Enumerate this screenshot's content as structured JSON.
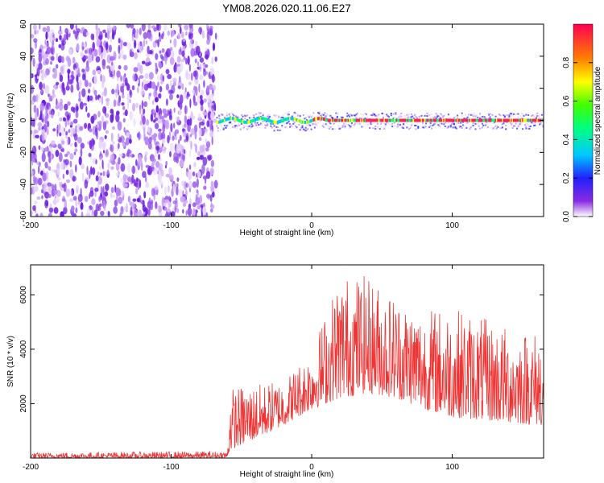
{
  "title": "YM08.2026.020.11.06.E27",
  "chart_data": [
    {
      "type": "heatmap",
      "title": "YM08.2026.020.11.06.E27",
      "xlabel": "Height of straight line (km)",
      "ylabel": "Frequency (Hz)",
      "xlim": [
        -200,
        165
      ],
      "ylim": [
        -60,
        60
      ],
      "x_ticks": [
        "-200",
        "-100",
        "0",
        "100"
      ],
      "y_ticks": [
        "60",
        "40",
        "20",
        "0",
        "-20",
        "-40",
        "-60"
      ],
      "colorbar": {
        "label": "Normalized spectral amplitude",
        "range": [
          0,
          1
        ],
        "ticks": [
          "0.0",
          "0.2",
          "0.4",
          "0.6",
          "0.8"
        ]
      },
      "features": {
        "noise_region_x": [
          -200,
          -68
        ],
        "signal_start_x": -68,
        "signal_center_frequency": 0
      }
    },
    {
      "type": "line",
      "xlabel": "Height of straight line (km)",
      "ylabel": "SNR (10 * v/v)",
      "xlim": [
        -200,
        165
      ],
      "ylim": [
        0,
        7100
      ],
      "x_ticks": [
        "-200",
        "-100",
        "0",
        "100"
      ],
      "y_ticks": [
        "6000",
        "4000",
        "2000"
      ],
      "series": [
        {
          "color": "#ee3333",
          "envelope": {
            "x": [
              -200,
              -60,
              -58,
              -40,
              -20,
              0,
              20,
              40,
              60,
              80,
              100,
              120,
              140,
              165
            ],
            "low": [
              0,
              0,
              300,
              700,
              1200,
              1800,
              2200,
              2400,
              2200,
              1800,
              1500,
              1400,
              1300,
              1200
            ],
            "high": [
              200,
              250,
              2600,
              2700,
              2900,
              4000,
              6800,
              6700,
              6000,
              5500,
              5600,
              5200,
              4800,
              4700
            ]
          }
        }
      ]
    }
  ]
}
